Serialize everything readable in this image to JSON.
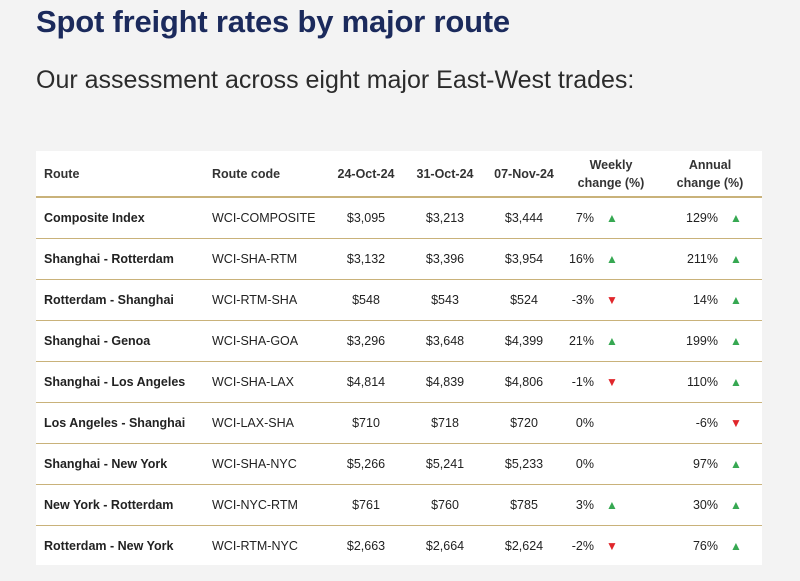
{
  "page": {
    "title": "Spot freight rates by major route",
    "subtitle": "Our assessment across eight major East-West trades:"
  },
  "table": {
    "headers": {
      "route": "Route",
      "code": "Route code",
      "d1": "24-Oct-24",
      "d2": "31-Oct-24",
      "d3": "07-Nov-24",
      "weekly_line1": "Weekly",
      "weekly_line2": "change (%)",
      "annual_line1": "Annual",
      "annual_line2": "change (%)"
    },
    "rows": [
      {
        "route": "Composite Index",
        "code": "WCI-COMPOSITE",
        "d1": "$3,095",
        "d2": "$3,213",
        "d3": "$3,444",
        "weekly": "7%",
        "weekly_dir": "up",
        "annual": "129%",
        "annual_dir": "up"
      },
      {
        "route": "Shanghai - Rotterdam",
        "code": "WCI-SHA-RTM",
        "d1": "$3,132",
        "d2": "$3,396",
        "d3": "$3,954",
        "weekly": "16%",
        "weekly_dir": "up",
        "annual": "211%",
        "annual_dir": "up"
      },
      {
        "route": "Rotterdam - Shanghai",
        "code": "WCI-RTM-SHA",
        "d1": "$548",
        "d2": "$543",
        "d3": "$524",
        "weekly": "-3%",
        "weekly_dir": "down",
        "annual": "14%",
        "annual_dir": "up"
      },
      {
        "route": "Shanghai - Genoa",
        "code": "WCI-SHA-GOA",
        "d1": "$3,296",
        "d2": "$3,648",
        "d3": "$4,399",
        "weekly": "21%",
        "weekly_dir": "up",
        "annual": "199%",
        "annual_dir": "up"
      },
      {
        "route": "Shanghai - Los Angeles",
        "code": "WCI-SHA-LAX",
        "d1": "$4,814",
        "d2": "$4,839",
        "d3": "$4,806",
        "weekly": "-1%",
        "weekly_dir": "down",
        "annual": "110%",
        "annual_dir": "up"
      },
      {
        "route": "Los Angeles - Shanghai",
        "code": "WCI-LAX-SHA",
        "d1": "$710",
        "d2": "$718",
        "d3": "$720",
        "weekly": "0%",
        "weekly_dir": "none",
        "annual": "-6%",
        "annual_dir": "down"
      },
      {
        "route": "Shanghai - New York",
        "code": "WCI-SHA-NYC",
        "d1": "$5,266",
        "d2": "$5,241",
        "d3": "$5,233",
        "weekly": "0%",
        "weekly_dir": "none",
        "annual": "97%",
        "annual_dir": "up"
      },
      {
        "route": "New York - Rotterdam",
        "code": "WCI-NYC-RTM",
        "d1": "$761",
        "d2": "$760",
        "d3": "$785",
        "weekly": "3%",
        "weekly_dir": "up",
        "annual": "30%",
        "annual_dir": "up"
      },
      {
        "route": "Rotterdam - New York",
        "code": "WCI-RTM-NYC",
        "d1": "$2,663",
        "d2": "$2,664",
        "d3": "$2,624",
        "weekly": "-2%",
        "weekly_dir": "down",
        "annual": "76%",
        "annual_dir": "up"
      }
    ]
  }
}
